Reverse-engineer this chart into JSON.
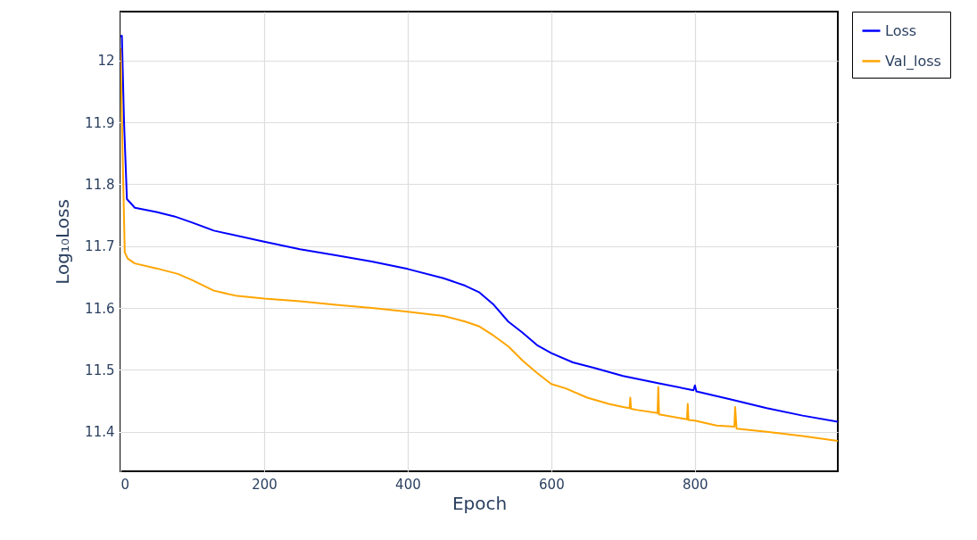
{
  "chart_data": {
    "type": "line",
    "xlabel": "Epoch",
    "ylabel": "Log₁₀Loss",
    "xlim": [
      0,
      999
    ],
    "ylim": [
      11.336,
      12.079
    ],
    "xticks": [
      0,
      200,
      400,
      600,
      800
    ],
    "yticks": [
      11.4,
      11.5,
      11.6,
      11.7,
      11.8,
      11.9,
      12
    ],
    "grid": true,
    "legend": "top right",
    "line_style": "solid",
    "marker": "none",
    "series": [
      {
        "name": "Loss",
        "color": "#0000ff",
        "x": [
          0,
          2,
          5,
          9,
          20,
          50,
          75,
          100,
          130,
          200,
          250,
          300,
          350,
          400,
          450,
          480,
          500,
          520,
          540,
          560,
          580,
          600,
          630,
          660,
          700,
          750,
          798,
          800,
          802,
          850,
          900,
          950,
          999
        ],
        "values": [
          12.039,
          12.04,
          11.9,
          11.776,
          11.762,
          11.755,
          11.748,
          11.738,
          11.725,
          11.707,
          11.695,
          11.685,
          11.675,
          11.663,
          11.648,
          11.636,
          11.625,
          11.605,
          11.578,
          11.56,
          11.54,
          11.527,
          11.512,
          11.503,
          11.49,
          11.478,
          11.467,
          11.475,
          11.465,
          11.452,
          11.438,
          11.426,
          11.416
        ]
      },
      {
        "name": "Val_loss",
        "color": "#ffa500",
        "x": [
          0,
          3,
          6,
          10,
          20,
          50,
          80,
          100,
          130,
          160,
          200,
          250,
          300,
          350,
          400,
          450,
          480,
          500,
          520,
          540,
          560,
          580,
          600,
          620,
          650,
          680,
          700,
          709,
          710,
          711,
          720,
          748,
          749,
          750,
          789,
          790,
          791,
          800,
          830,
          855,
          856,
          858,
          900,
          950,
          999
        ],
        "values": [
          12.02,
          11.85,
          11.69,
          11.68,
          11.672,
          11.664,
          11.655,
          11.645,
          11.628,
          11.62,
          11.615,
          11.611,
          11.605,
          11.6,
          11.594,
          11.587,
          11.578,
          11.57,
          11.555,
          11.538,
          11.515,
          11.495,
          11.477,
          11.47,
          11.455,
          11.445,
          11.44,
          11.438,
          11.455,
          11.437,
          11.435,
          11.43,
          11.472,
          11.428,
          11.42,
          11.445,
          11.419,
          11.418,
          11.41,
          11.408,
          11.44,
          11.405,
          11.4,
          11.393,
          11.385
        ]
      }
    ]
  }
}
